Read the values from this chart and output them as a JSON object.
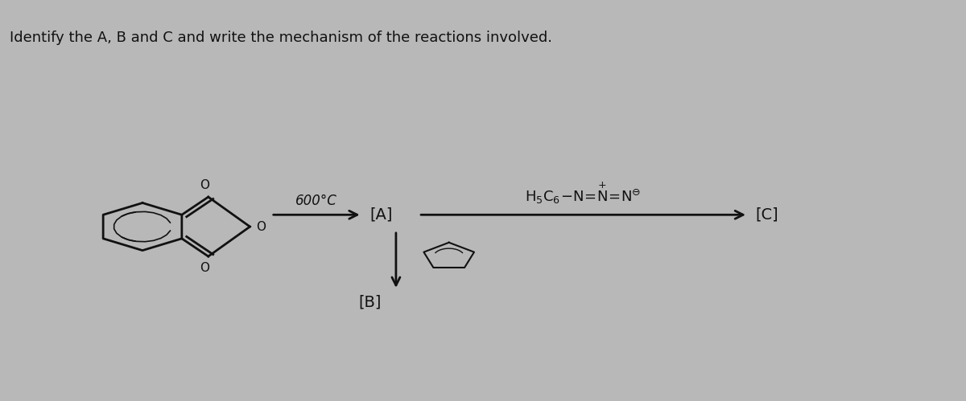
{
  "title": "Identify the A, B and C and write the mechanism of the reactions involved.",
  "bg_color": "#b8b8b8",
  "panel_bg": "#a8a8a8",
  "title_bg": "#e8e8e8",
  "title_fontsize": 13,
  "title_color": "#111111",
  "figsize": [
    12.0,
    4.99
  ],
  "dpi": 100,
  "temp_label": "600°C",
  "A_label": "[A]",
  "B_label": "[B]",
  "C_label": "[C]",
  "text_color": "#111111"
}
